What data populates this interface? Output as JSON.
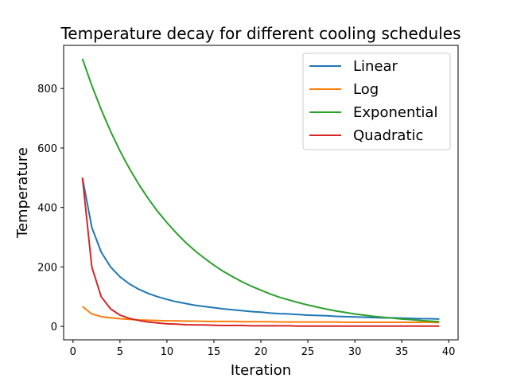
{
  "chart_data": {
    "type": "line",
    "title": "Temperature decay for different cooling schedules",
    "xlabel": "Iteration",
    "ylabel": "Temperature",
    "xlim": [
      -1,
      41
    ],
    "ylim": [
      -45,
      945
    ],
    "xticks": [
      0,
      5,
      10,
      15,
      20,
      25,
      30,
      35,
      40
    ],
    "yticks": [
      0,
      200,
      400,
      600,
      800
    ],
    "grid": false,
    "legend_position": "top-right",
    "x": [
      1,
      2,
      3,
      4,
      5,
      6,
      7,
      8,
      9,
      10,
      11,
      12,
      13,
      14,
      15,
      16,
      17,
      18,
      19,
      20,
      21,
      22,
      23,
      24,
      25,
      26,
      27,
      28,
      29,
      30,
      31,
      32,
      33,
      34,
      35,
      36,
      37,
      38,
      39
    ],
    "series": [
      {
        "name": "Linear",
        "color": "#1f77b4",
        "values": [
          500,
          333,
          250,
          200,
          167,
          143,
          125,
          111,
          100,
          91,
          83,
          77,
          71,
          67,
          63,
          59,
          56,
          53,
          50,
          48,
          45,
          43,
          42,
          40,
          38,
          37,
          36,
          34,
          33,
          32,
          31,
          30,
          29,
          29,
          28,
          27,
          26,
          26,
          25
        ]
      },
      {
        "name": "Log",
        "color": "#ff7f0e",
        "values": [
          67,
          42,
          33,
          29,
          26,
          24,
          22,
          21,
          20,
          19,
          19,
          18,
          18,
          17,
          17,
          17,
          17,
          16,
          16,
          16,
          16,
          15,
          15,
          15,
          15,
          15,
          15,
          15,
          14,
          14,
          14,
          14,
          14,
          14,
          14,
          14,
          14,
          14,
          13
        ]
      },
      {
        "name": "Exponential",
        "color": "#2ca02c",
        "values": [
          900,
          810,
          729,
          656,
          590,
          531,
          478,
          430,
          387,
          349,
          314,
          282,
          254,
          229,
          206,
          185,
          167,
          150,
          135,
          122,
          109,
          98,
          89,
          80,
          72,
          65,
          58,
          52,
          47,
          42,
          38,
          34,
          31,
          28,
          25,
          23,
          20,
          18,
          16
        ]
      },
      {
        "name": "Quadratic",
        "color": "#d62728",
        "values": [
          500,
          200,
          100,
          59,
          38,
          27,
          20,
          15,
          12,
          9,
          8,
          6,
          5,
          5,
          4,
          3,
          3,
          3,
          2,
          2,
          2,
          2,
          2,
          1,
          1,
          1,
          1,
          1,
          1,
          1,
          1,
          1,
          1,
          1,
          1,
          1,
          1,
          1,
          1
        ]
      }
    ]
  }
}
